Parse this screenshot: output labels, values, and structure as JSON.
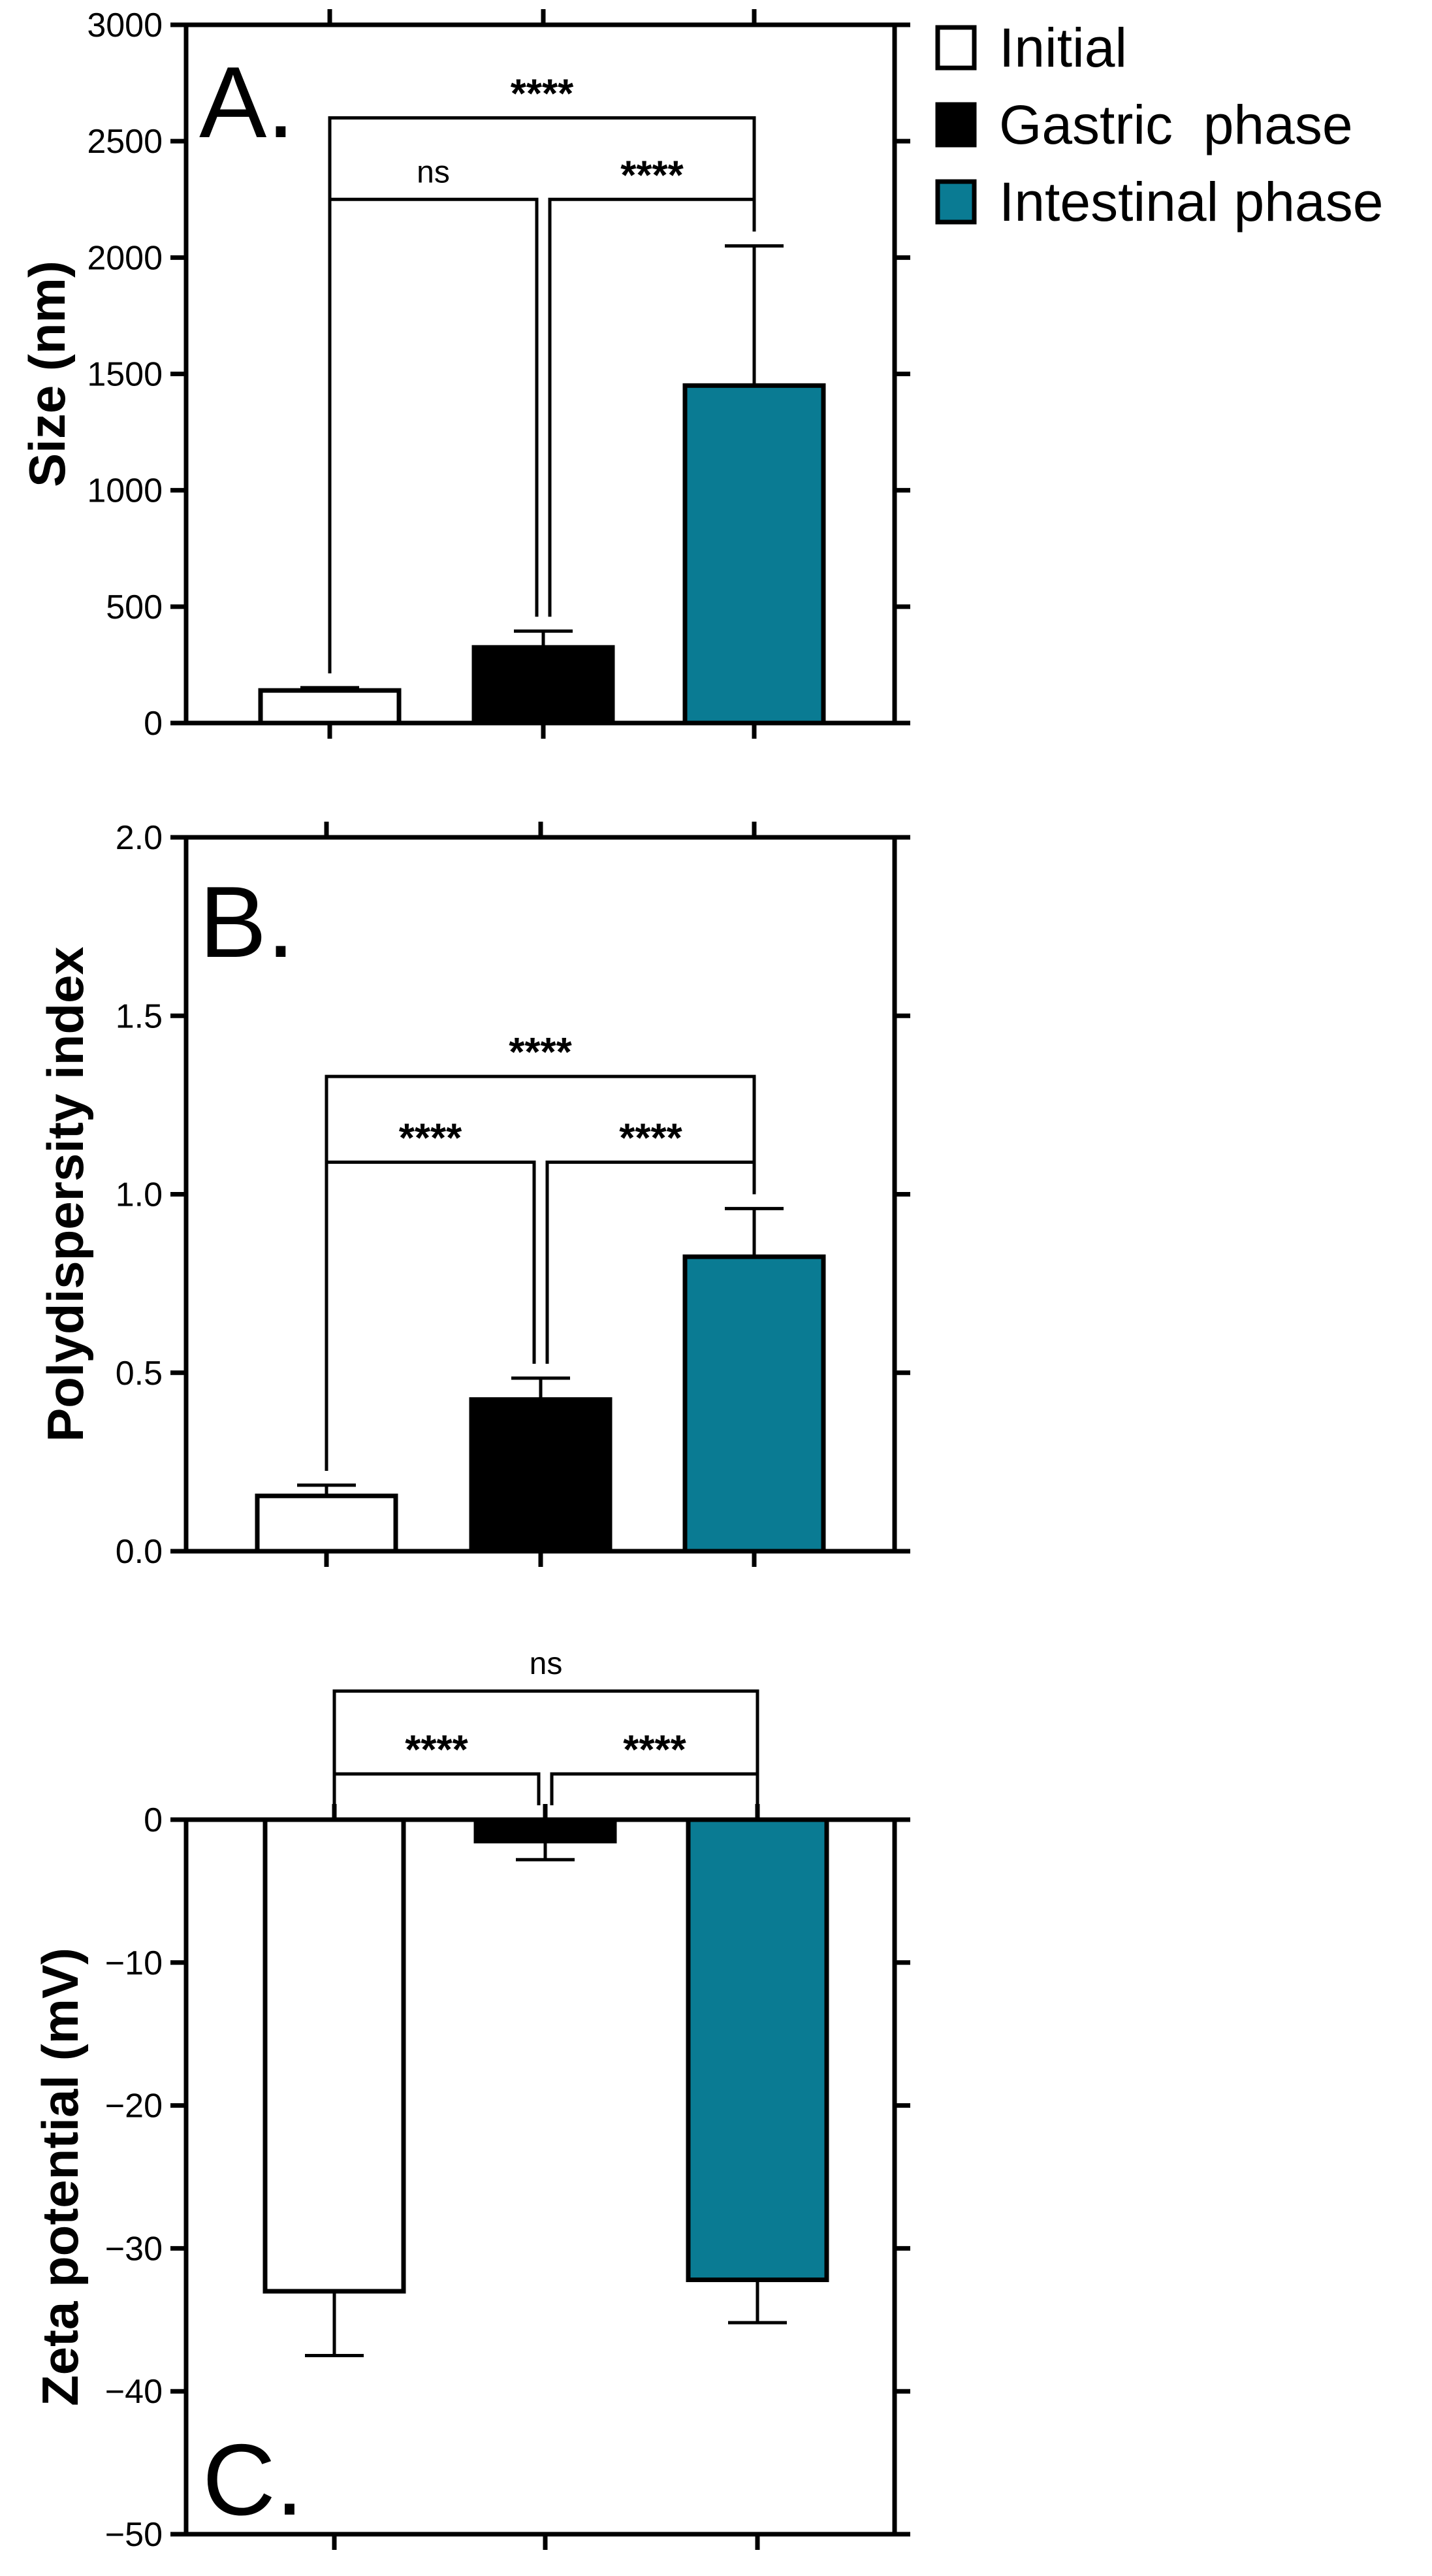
{
  "colors": {
    "initial": "#ffffff",
    "gastric": "#000000",
    "intestinal": "#0a7b93"
  },
  "legend": [
    {
      "label": "Initial",
      "color": "#ffffff"
    },
    {
      "label": "Gastric  phase",
      "color": "#000000"
    },
    {
      "label": "Intestinal phase",
      "color": "#0a7b93"
    }
  ],
  "chart_data": [
    {
      "type": "bar",
      "panel": "A.",
      "ylabel": "Size (nm)",
      "xlabel": "",
      "ylim": [
        0,
        3000
      ],
      "yticks": [
        0,
        500,
        1000,
        1500,
        2000,
        2500,
        3000
      ],
      "ytick_labels": [
        "0",
        "500",
        "1000",
        "1500",
        "2000",
        "2500",
        "3000"
      ],
      "categories": [
        "Initial",
        "Gastric phase",
        "Intestinal phase"
      ],
      "values": [
        140,
        325,
        1450
      ],
      "errors": [
        12,
        70,
        600
      ],
      "comparisons": [
        {
          "a": 0,
          "b": 1,
          "label": "ns",
          "level": 2250
        },
        {
          "a": 1,
          "b": 2,
          "label": "****",
          "level": 2250
        },
        {
          "a": 0,
          "b": 2,
          "label": "****",
          "level": 2600
        }
      ]
    },
    {
      "type": "bar",
      "panel": "B.",
      "ylabel": "Polydispersity index",
      "xlabel": "",
      "ylim": [
        0,
        2
      ],
      "yticks": [
        0,
        0.5,
        1,
        1.5,
        2
      ],
      "ytick_labels": [
        "0.0",
        "0.5",
        "1.0",
        "1.5",
        "2.0"
      ],
      "categories": [
        "Initial",
        "Gastric phase",
        "Intestinal phase"
      ],
      "values": [
        0.155,
        0.425,
        0.825
      ],
      "errors": [
        0.03,
        0.06,
        0.135
      ],
      "comparisons": [
        {
          "a": 0,
          "b": 1,
          "label": "****",
          "level": 1.09
        },
        {
          "a": 1,
          "b": 2,
          "label": "****",
          "level": 1.09
        },
        {
          "a": 0,
          "b": 2,
          "label": "****",
          "level": 1.33
        }
      ]
    },
    {
      "type": "bar",
      "panel": "C.",
      "ylabel": "Zeta potential (mV)",
      "xlabel": "",
      "ylim": [
        -50,
        0
      ],
      "yticks": [
        -50,
        -40,
        -30,
        -20,
        -10,
        0
      ],
      "ytick_labels": [
        "−50",
        "−40",
        "−30",
        "−20",
        "−10",
        "0"
      ],
      "categories": [
        "Initial",
        "Gastric phase",
        "Intestinal phase"
      ],
      "values": [
        -33,
        -1.5,
        -32.2
      ],
      "errors": [
        4.5,
        1.3,
        3
      ],
      "comparisons": [
        {
          "a": 0,
          "b": 1,
          "label": "****",
          "level": 3.2
        },
        {
          "a": 1,
          "b": 2,
          "label": "****",
          "level": 3.2
        },
        {
          "a": 0,
          "b": 2,
          "label": "ns",
          "level": 9
        }
      ]
    }
  ]
}
